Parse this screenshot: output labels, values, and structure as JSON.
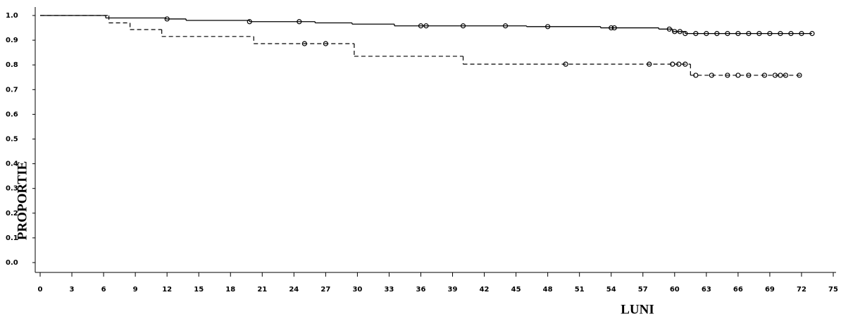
{
  "chart_data": {
    "type": "step",
    "xlabel": "LUNI",
    "ylabel": "PROPORTIE",
    "xlim": [
      0,
      75
    ],
    "ylim": [
      0,
      1
    ],
    "xticks": [
      0,
      3,
      6,
      9,
      12,
      15,
      18,
      21,
      24,
      27,
      30,
      33,
      36,
      39,
      42,
      45,
      48,
      51,
      54,
      57,
      60,
      63,
      66,
      69,
      72,
      75
    ],
    "yticks": [
      {
        "value": 0,
        "label": "0.0"
      },
      0.1,
      0.2,
      0.3,
      0.4,
      0.5,
      0.6,
      0.7,
      0.8,
      0.9,
      {
        "value": 1,
        "label": "1.0"
      }
    ],
    "series": [
      {
        "style": "solid",
        "color": "#000000",
        "x": [
          0,
          6.2,
          11.9,
          13.8,
          19.8,
          26,
          29.5,
          33.5,
          46,
          53,
          58.5,
          59.8,
          61,
          73
        ],
        "y": [
          1,
          0.99,
          0.986,
          0.98,
          0.975,
          0.97,
          0.965,
          0.958,
          0.955,
          0.95,
          0.945,
          0.935,
          0.927,
          0.927
        ],
        "censor_x": [
          12,
          19.8,
          24.5,
          36,
          36.5,
          40,
          44,
          48,
          54,
          54.3,
          59.5,
          60,
          60.5,
          61,
          62,
          63,
          64,
          65,
          66,
          67,
          68,
          69,
          70,
          71,
          72,
          73
        ],
        "censor_y": [
          0.986,
          0.975,
          0.975,
          0.958,
          0.958,
          0.958,
          0.958,
          0.955,
          0.95,
          0.95,
          0.945,
          0.935,
          0.935,
          0.927,
          0.927,
          0.927,
          0.927,
          0.927,
          0.927,
          0.927,
          0.927,
          0.927,
          0.927,
          0.927,
          0.927,
          0.927
        ]
      },
      {
        "style": "dashed",
        "color": "#000000",
        "x": [
          0,
          6.5,
          8.5,
          11.5,
          20.2,
          29.7,
          40,
          61.5,
          72
        ],
        "y": [
          1,
          0.97,
          0.943,
          0.915,
          0.886,
          0.835,
          0.803,
          0.758,
          0.758
        ],
        "censor_x": [
          25,
          27,
          49.7,
          57.6,
          59.8,
          60.4,
          61,
          62,
          63.5,
          65,
          66,
          67,
          68.5,
          69.5,
          70,
          70.5,
          71.8
        ],
        "censor_y": [
          0.886,
          0.886,
          0.803,
          0.803,
          0.803,
          0.803,
          0.803,
          0.758,
          0.758,
          0.758,
          0.758,
          0.758,
          0.758,
          0.758,
          0.758,
          0.758,
          0.758
        ]
      }
    ]
  }
}
